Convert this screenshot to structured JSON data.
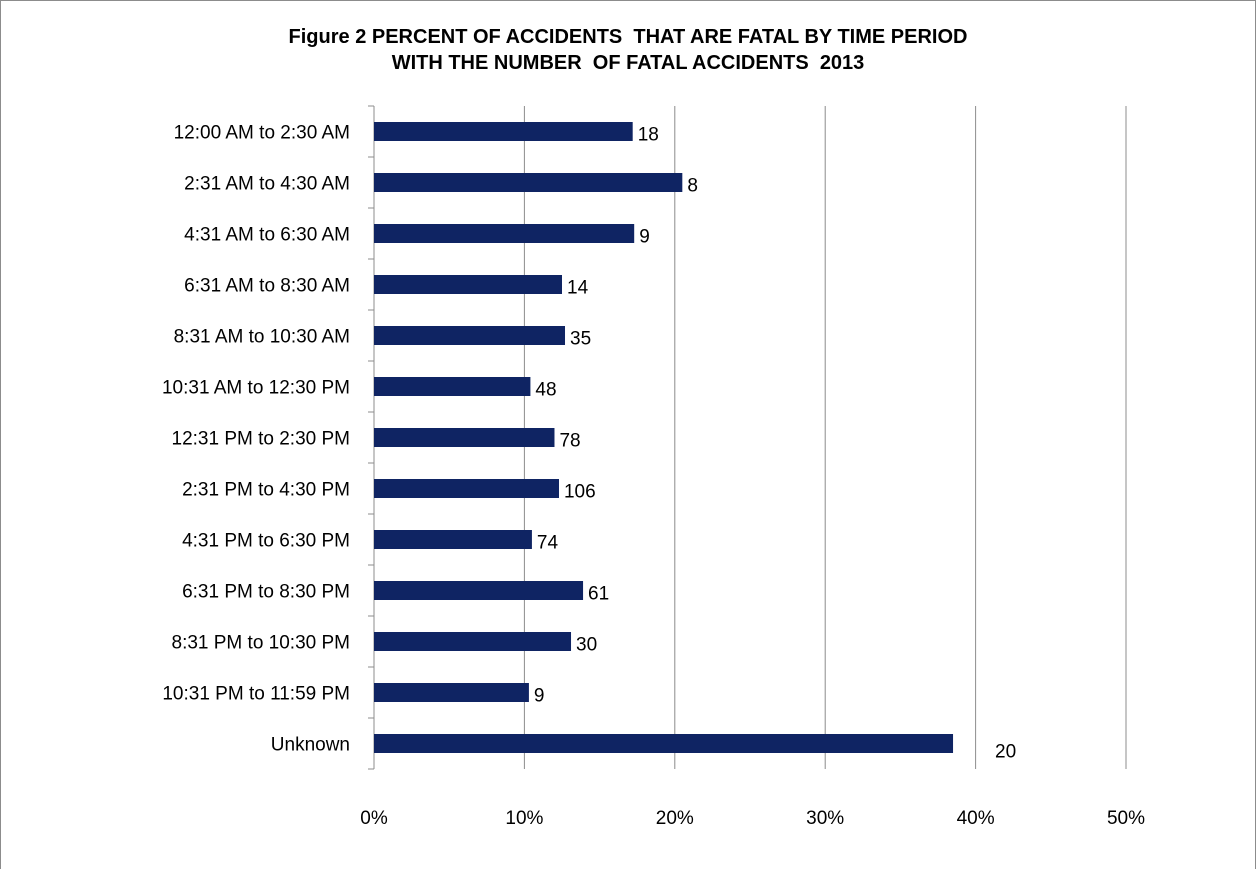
{
  "title": {
    "line1": "Figure 2 PERCENT OF ACCIDENTS  THAT ARE FATAL BY TIME PERIOD",
    "line2": "WITH THE NUMBER  OF FATAL ACCIDENTS  2013"
  },
  "colors": {
    "bar": "#0f2463",
    "grid": "#8c8c8c"
  },
  "chart_data": {
    "type": "bar",
    "orientation": "horizontal",
    "title": "Figure 2 PERCENT OF ACCIDENTS THAT ARE FATAL BY TIME PERIOD WITH THE NUMBER OF FATAL ACCIDENTS 2013",
    "xlabel": "",
    "ylabel": "",
    "xlim": [
      0,
      50
    ],
    "x_ticks": [
      "0%",
      "10%",
      "20%",
      "30%",
      "40%",
      "50%"
    ],
    "grid": true,
    "legend": "none",
    "categories": [
      "12:00 AM to 2:30 AM",
      "2:31 AM to 4:30 AM",
      "4:31 AM to 6:30 AM",
      "6:31 AM to 8:30 AM",
      "8:31 AM to 10:30 AM",
      "10:31 AM to 12:30 PM",
      "12:31 PM to 2:30 PM",
      "2:31 PM to 4:30 PM",
      "4:31 PM to 6:30 PM",
      "6:31 PM to 8:30 PM",
      "8:31 PM to 10:30 PM",
      "10:31 PM to 11:59 PM",
      "Unknown"
    ],
    "values": [
      17.2,
      20.5,
      17.3,
      12.5,
      12.7,
      10.4,
      12.0,
      12.3,
      10.5,
      13.9,
      13.1,
      10.3,
      38.5
    ],
    "data_labels": [
      "18",
      "8",
      "9",
      "14",
      "35",
      "48",
      "78",
      "106",
      "74",
      "61",
      "30",
      "9",
      "20"
    ]
  }
}
